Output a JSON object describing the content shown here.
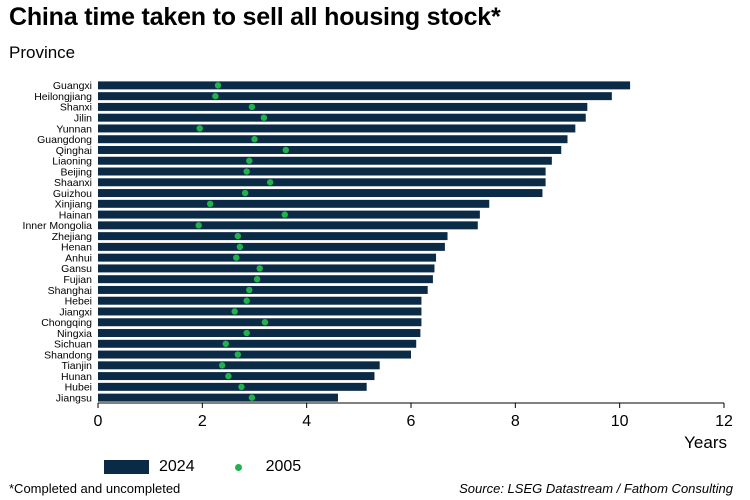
{
  "title": "China time taken to sell all housing stock*",
  "subtitle": "Province",
  "footnote": "*Completed and uncompleted",
  "source": "Source: LSEG Datastream / Fathom Consulting",
  "colors": {
    "bar": "#0b2a45",
    "dot": "#22b24c"
  },
  "chart_data": {
    "type": "bar",
    "orientation": "horizontal",
    "xlabel": "Years",
    "xlim": [
      0,
      12
    ],
    "xticks": [
      0,
      2,
      4,
      6,
      8,
      10,
      12
    ],
    "grid": false,
    "legend_position": "bottom",
    "categories": [
      "Guangxi",
      "Heilongjiang",
      "Shanxi",
      "Jilin",
      "Yunnan",
      "Guangdong",
      "Qinghai",
      "Liaoning",
      "Beijing",
      "Shaanxi",
      "Guizhou",
      "Xinjiang",
      "Hainan",
      "Inner Mongolia",
      "Zhejiang",
      "Henan",
      "Anhui",
      "Gansu",
      "Fujian",
      "Shanghai",
      "Hebei",
      "Jiangxi",
      "Chongqing",
      "Ningxia",
      "Sichuan",
      "Shandong",
      "Tianjin",
      "Hunan",
      "Hubei",
      "Jiangsu"
    ],
    "series": [
      {
        "name": "2024",
        "type": "bar",
        "values": [
          10.2,
          9.85,
          9.38,
          9.35,
          9.15,
          9.0,
          8.88,
          8.7,
          8.58,
          8.58,
          8.52,
          7.5,
          7.32,
          7.28,
          6.7,
          6.65,
          6.48,
          6.45,
          6.42,
          6.32,
          6.2,
          6.2,
          6.2,
          6.18,
          6.1,
          6.0,
          5.4,
          5.3,
          5.15,
          4.6
        ]
      },
      {
        "name": "2005",
        "type": "scatter",
        "values": [
          2.3,
          2.25,
          2.95,
          3.18,
          1.95,
          3.0,
          3.6,
          2.9,
          2.85,
          3.3,
          2.82,
          2.15,
          3.58,
          1.93,
          2.68,
          2.72,
          2.65,
          3.1,
          3.05,
          2.9,
          2.85,
          2.62,
          3.2,
          2.85,
          2.45,
          2.68,
          2.38,
          2.5,
          2.75,
          2.95
        ]
      }
    ]
  }
}
